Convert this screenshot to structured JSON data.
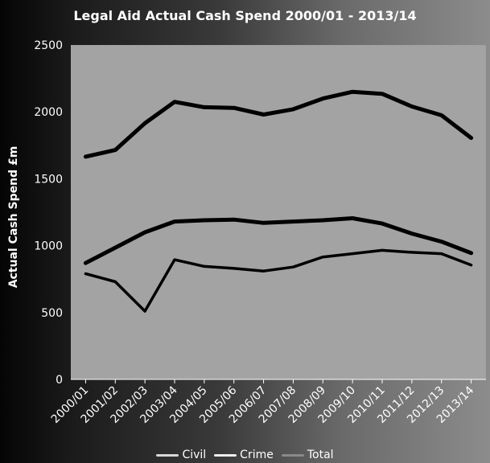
{
  "chart_data": {
    "type": "line",
    "title": "Legal Aid Actual Cash Spend 2000/01 - 2013/14",
    "xlabel": "",
    "ylabel": "Actual Cash Spend £m",
    "ylim": [
      0,
      2500
    ],
    "yticks": [
      "0",
      "500",
      "1000",
      "1500",
      "2000",
      "2500"
    ],
    "categories": [
      "2000/01",
      "2001/02",
      "2002/03",
      "2003/04",
      "2004/05",
      "2005/06",
      "2006/07",
      "2007/08",
      "2008/09",
      "2009/10",
      "2010/11",
      "2011/12",
      "2012/13",
      "2013/14"
    ],
    "series": [
      {
        "name": "Civil",
        "values": [
          790,
          730,
          510,
          895,
          845,
          830,
          810,
          840,
          915,
          940,
          965,
          950,
          940,
          855
        ]
      },
      {
        "name": "Crime",
        "values": [
          870,
          985,
          1100,
          1180,
          1190,
          1195,
          1170,
          1180,
          1190,
          1205,
          1165,
          1090,
          1030,
          945
        ]
      },
      {
        "name": "Total",
        "values": [
          1665,
          1715,
          1915,
          2075,
          2035,
          2030,
          1980,
          2020,
          2100,
          2150,
          2135,
          2040,
          1975,
          1805
        ]
      }
    ],
    "grid": false,
    "legend": "bottom",
    "colors": {
      "Civil": "#000000",
      "Crime": "#000000",
      "Total": "#000000",
      "legend_Civil": "#d9d9d9",
      "legend_Crime": "#eeeeee",
      "legend_Total": "#8a8a8a",
      "plot_area": "#a3a3a3"
    }
  }
}
